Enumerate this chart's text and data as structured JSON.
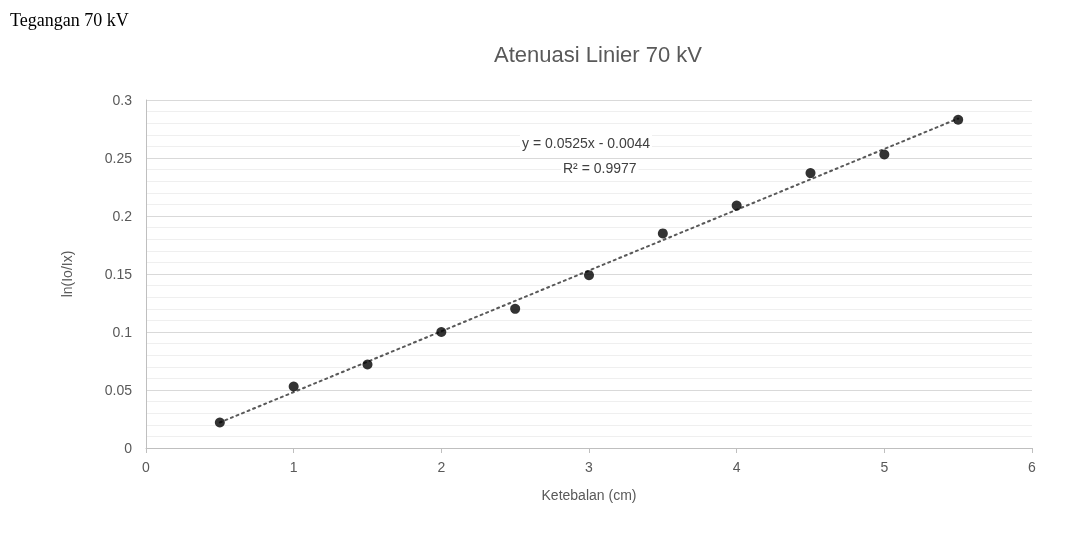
{
  "chart_data": {
    "type": "scatter",
    "title": "Atenuasi Linier 70 kV",
    "xlabel": "Ketebalan (cm)",
    "ylabel": "ln(Io/Ix)",
    "annotations": [
      "Tegangan 70 kV",
      "y = 0.0525x - 0.0044",
      "R² = 0.9977"
    ],
    "x": [
      0.5,
      1,
      1.5,
      2,
      2.5,
      3,
      3.5,
      4,
      4.5,
      5,
      5.5
    ],
    "series": [
      {
        "color": "#000000",
        "marker": "circle",
        "values": [
          0.022,
          0.053,
          0.072,
          0.1,
          0.12,
          0.149,
          0.185,
          0.209,
          0.237,
          0.253,
          0.283
        ]
      },
      {
        "type": "line",
        "color": "#595959",
        "marker": "none",
        "line_style": "dotted",
        "x": [
          0.5,
          5.5
        ],
        "values": [
          0.022,
          0.284
        ]
      }
    ],
    "xlim": [
      0,
      6
    ],
    "xticks": [
      0,
      1,
      2,
      3,
      4,
      5,
      6
    ],
    "ylim": [
      0,
      0.3
    ],
    "yticks": [
      0,
      0.05,
      0.1,
      0.15,
      0.2,
      0.25,
      0.3
    ],
    "grid": "y"
  }
}
